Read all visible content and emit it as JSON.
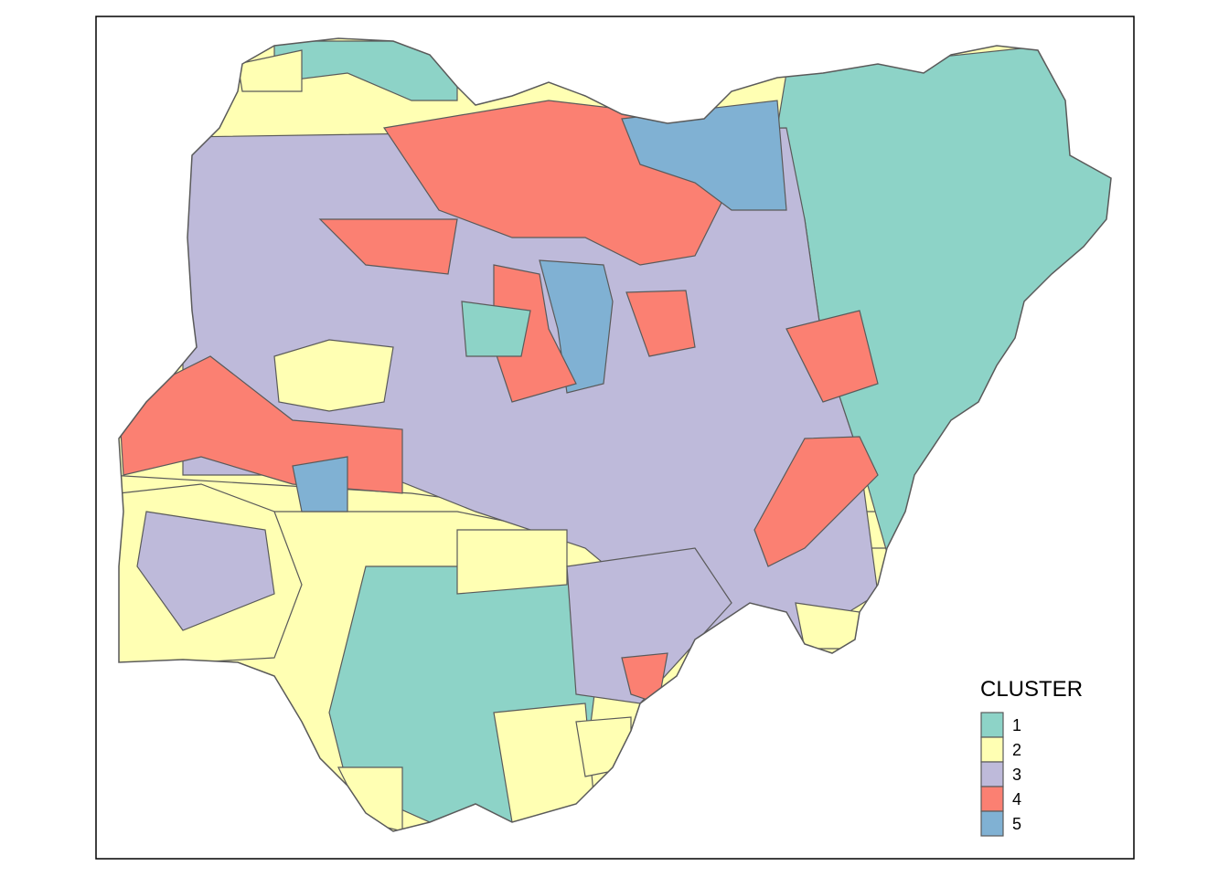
{
  "legend": {
    "title": "CLUSTER",
    "items": [
      {
        "label": "1",
        "color": "#8dd3c7"
      },
      {
        "label": "2",
        "color": "#ffffb3"
      },
      {
        "label": "3",
        "color": "#bebada"
      },
      {
        "label": "4",
        "color": "#fb8072"
      },
      {
        "label": "5",
        "color": "#80b1d3"
      }
    ]
  }
}
